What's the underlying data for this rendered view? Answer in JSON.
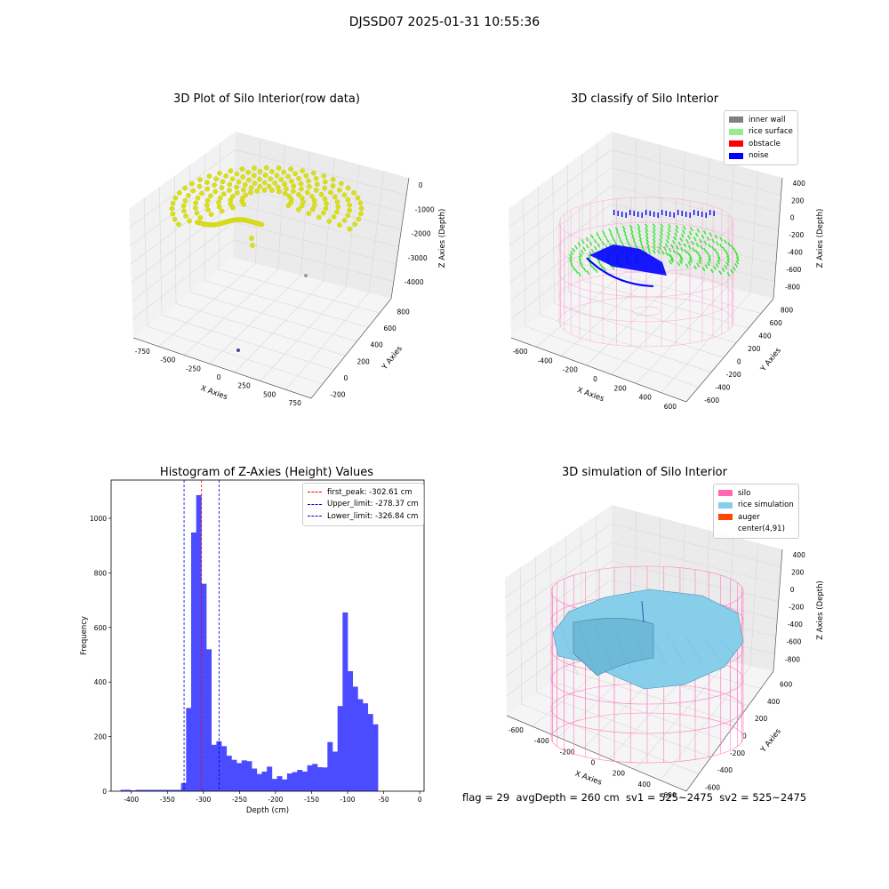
{
  "suptitle": "DJSSD07 2025-01-31 10:55:36",
  "footer": "flag = 29  avgDepth = 260 cm  sv1 = 525~2475  sv2 = 525~2475",
  "panels": [
    {
      "title": "3D Plot of Silo Interior(row data)",
      "xlabel": "X Axies",
      "ylabel": "Y Axies",
      "zlabel": "Z Axies (Depth)",
      "xticks": [
        "-750",
        "-500",
        "-250",
        "0",
        "250",
        "500",
        "750"
      ],
      "yticks": [
        "-200",
        "0",
        "200",
        "400",
        "600",
        "800"
      ],
      "zticks": [
        "0",
        "-1000",
        "-2000",
        "-3000",
        "-4000"
      ]
    },
    {
      "title": "3D classify of Silo Interior",
      "xlabel": "X Axies",
      "ylabel": "Y Axies",
      "zlabel": "Z Axies (Depth)",
      "xticks": [
        "-600",
        "-400",
        "-200",
        "0",
        "200",
        "400",
        "600"
      ],
      "yticks": [
        "-600",
        "-400",
        "-200",
        "0",
        "200",
        "400",
        "600",
        "800"
      ],
      "zticks": [
        "400",
        "200",
        "0",
        "-200",
        "-400",
        "-600",
        "-800"
      ],
      "legend": [
        {
          "label": "inner wall",
          "color": "#808080"
        },
        {
          "label": "rice surface",
          "color": "#90ee90"
        },
        {
          "label": "obstacle",
          "color": "#ff0000"
        },
        {
          "label": "noise",
          "color": "#0000ff"
        }
      ]
    },
    {
      "title": "3D simulation of Silo Interior",
      "xlabel": "X Axies",
      "ylabel": "Y Axies",
      "zlabel": "Z Axies (Depth)",
      "xticks": [
        "-600",
        "-400",
        "-200",
        "0",
        "200",
        "400",
        "600"
      ],
      "yticks": [
        "-600",
        "-400",
        "-200",
        "0",
        "200",
        "400",
        "600"
      ],
      "zticks": [
        "400",
        "200",
        "0",
        "-200",
        "-400",
        "-600",
        "-800"
      ],
      "legend": [
        {
          "label": "silo",
          "color": "#ff69b4"
        },
        {
          "label": "rice simulation",
          "color": "#87ceeb"
        },
        {
          "label": "auger",
          "color": "#ff4500"
        },
        {
          "label": "center(4,91)",
          "color": "#ffffff"
        }
      ]
    }
  ],
  "histogram": {
    "title": "Histogram of Z-Axies (Height) Values",
    "xlabel": "Depth (cm)",
    "ylabel": "Frequency"
  },
  "chart_data": {
    "type": "bar",
    "title": "Histogram of Z-Axies (Height) Values",
    "xlabel": "Depth (cm)",
    "ylabel": "Frequency",
    "xlim": [
      -428,
      6
    ],
    "ylim": [
      0,
      1140
    ],
    "xticks": [
      -400,
      -350,
      -300,
      -250,
      -200,
      -150,
      -100,
      -50,
      0
    ],
    "yticks": [
      0,
      200,
      400,
      600,
      800,
      1000
    ],
    "bar_color": "#4b4bff",
    "bins": [
      {
        "x0": -415,
        "x1": -408,
        "value": 5
      },
      {
        "x0": -408,
        "x1": -401,
        "value": 5
      },
      {
        "x0": -401,
        "x1": -394,
        "value": 3
      },
      {
        "x0": -394,
        "x1": -387,
        "value": 5
      },
      {
        "x0": -387,
        "x1": -380,
        "value": 5
      },
      {
        "x0": -380,
        "x1": -373,
        "value": 5
      },
      {
        "x0": -373,
        "x1": -366,
        "value": 5
      },
      {
        "x0": -366,
        "x1": -359,
        "value": 5
      },
      {
        "x0": -359,
        "x1": -352,
        "value": 5
      },
      {
        "x0": -352,
        "x1": -345,
        "value": 5
      },
      {
        "x0": -345,
        "x1": -338,
        "value": 5
      },
      {
        "x0": -338,
        "x1": -331,
        "value": 5
      },
      {
        "x0": -331,
        "x1": -324,
        "value": 30
      },
      {
        "x0": -324,
        "x1": -317,
        "value": 305
      },
      {
        "x0": -317,
        "x1": -310,
        "value": 948
      },
      {
        "x0": -310,
        "x1": -303,
        "value": 1085
      },
      {
        "x0": -303,
        "x1": -296,
        "value": 760
      },
      {
        "x0": -296,
        "x1": -289,
        "value": 520
      },
      {
        "x0": -289,
        "x1": -282,
        "value": 170
      },
      {
        "x0": -282,
        "x1": -275,
        "value": 183
      },
      {
        "x0": -275,
        "x1": -268,
        "value": 165
      },
      {
        "x0": -268,
        "x1": -261,
        "value": 130
      },
      {
        "x0": -261,
        "x1": -254,
        "value": 115
      },
      {
        "x0": -254,
        "x1": -247,
        "value": 103
      },
      {
        "x0": -247,
        "x1": -240,
        "value": 113
      },
      {
        "x0": -240,
        "x1": -233,
        "value": 110
      },
      {
        "x0": -233,
        "x1": -226,
        "value": 83
      },
      {
        "x0": -226,
        "x1": -219,
        "value": 63
      },
      {
        "x0": -219,
        "x1": -212,
        "value": 72
      },
      {
        "x0": -212,
        "x1": -205,
        "value": 90
      },
      {
        "x0": -205,
        "x1": -198,
        "value": 45
      },
      {
        "x0": -198,
        "x1": -191,
        "value": 55
      },
      {
        "x0": -191,
        "x1": -184,
        "value": 43
      },
      {
        "x0": -184,
        "x1": -177,
        "value": 65
      },
      {
        "x0": -177,
        "x1": -170,
        "value": 70
      },
      {
        "x0": -170,
        "x1": -163,
        "value": 78
      },
      {
        "x0": -163,
        "x1": -156,
        "value": 72
      },
      {
        "x0": -156,
        "x1": -149,
        "value": 95
      },
      {
        "x0": -149,
        "x1": -142,
        "value": 100
      },
      {
        "x0": -142,
        "x1": -135,
        "value": 88
      },
      {
        "x0": -135,
        "x1": -128,
        "value": 87
      },
      {
        "x0": -128,
        "x1": -121,
        "value": 180
      },
      {
        "x0": -121,
        "x1": -114,
        "value": 145
      },
      {
        "x0": -114,
        "x1": -107,
        "value": 312
      },
      {
        "x0": -107,
        "x1": -100,
        "value": 655
      },
      {
        "x0": -100,
        "x1": -93,
        "value": 440
      },
      {
        "x0": -93,
        "x1": -86,
        "value": 383
      },
      {
        "x0": -86,
        "x1": -79,
        "value": 337
      },
      {
        "x0": -79,
        "x1": -72,
        "value": 322
      },
      {
        "x0": -72,
        "x1": -65,
        "value": 283
      },
      {
        "x0": -65,
        "x1": -58,
        "value": 245
      }
    ],
    "vlines": [
      {
        "x": -302.61,
        "color": "#ff0000",
        "label": "first_peak: -302.61 cm"
      },
      {
        "x": -278.37,
        "color": "#0000cc",
        "label": "Upper_limit: -278.37 cm"
      },
      {
        "x": -326.84,
        "color": "#0000cc",
        "label": "Lower_limit: -326.84 cm"
      }
    ],
    "legend_position": "upper right"
  }
}
